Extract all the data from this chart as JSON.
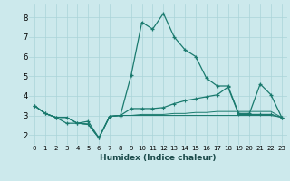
{
  "title": "",
  "xlabel": "Humidex (Indice chaleur)",
  "xlim": [
    -0.5,
    23.5
  ],
  "ylim": [
    1.5,
    8.7
  ],
  "yticks": [
    2,
    3,
    4,
    5,
    6,
    7,
    8
  ],
  "xticks": [
    0,
    1,
    2,
    3,
    4,
    5,
    6,
    7,
    8,
    9,
    10,
    11,
    12,
    13,
    14,
    15,
    16,
    17,
    18,
    19,
    20,
    21,
    22,
    23
  ],
  "xtick_labels": [
    "0",
    "1",
    "2",
    "3",
    "4",
    "5",
    "6",
    "7",
    "8",
    "9",
    "10",
    "11",
    "12",
    "13",
    "14",
    "15",
    "16",
    "17",
    "18",
    "19",
    "20",
    "21",
    "22",
    "23"
  ],
  "bg_color": "#cce9ec",
  "grid_color": "#aad4d8",
  "line_color": "#1a7a6e",
  "series1": [
    3.5,
    3.1,
    2.9,
    2.6,
    2.6,
    2.7,
    1.85,
    2.95,
    3.0,
    5.05,
    7.75,
    7.4,
    8.2,
    7.0,
    6.35,
    6.0,
    4.9,
    4.5,
    4.5,
    3.1,
    3.1,
    4.6,
    4.05,
    2.9
  ],
  "series2": [
    3.5,
    3.1,
    2.9,
    2.9,
    2.6,
    2.55,
    1.85,
    2.95,
    3.0,
    3.35,
    3.35,
    3.35,
    3.4,
    3.6,
    3.75,
    3.85,
    3.95,
    4.05,
    4.45,
    3.05,
    3.05,
    3.05,
    3.05,
    2.9
  ],
  "series3": [
    3.5,
    3.1,
    2.9,
    2.9,
    2.6,
    2.55,
    1.85,
    2.95,
    3.0,
    3.0,
    3.05,
    3.05,
    3.05,
    3.1,
    3.1,
    3.15,
    3.15,
    3.2,
    3.2,
    3.2,
    3.2,
    3.2,
    3.2,
    2.9
  ],
  "series4": [
    3.5,
    3.1,
    2.9,
    2.9,
    2.6,
    2.55,
    1.85,
    2.95,
    3.0,
    3.0,
    3.0,
    3.0,
    3.0,
    3.0,
    3.0,
    3.0,
    3.0,
    3.0,
    3.0,
    3.0,
    3.0,
    3.0,
    3.0,
    2.9
  ]
}
